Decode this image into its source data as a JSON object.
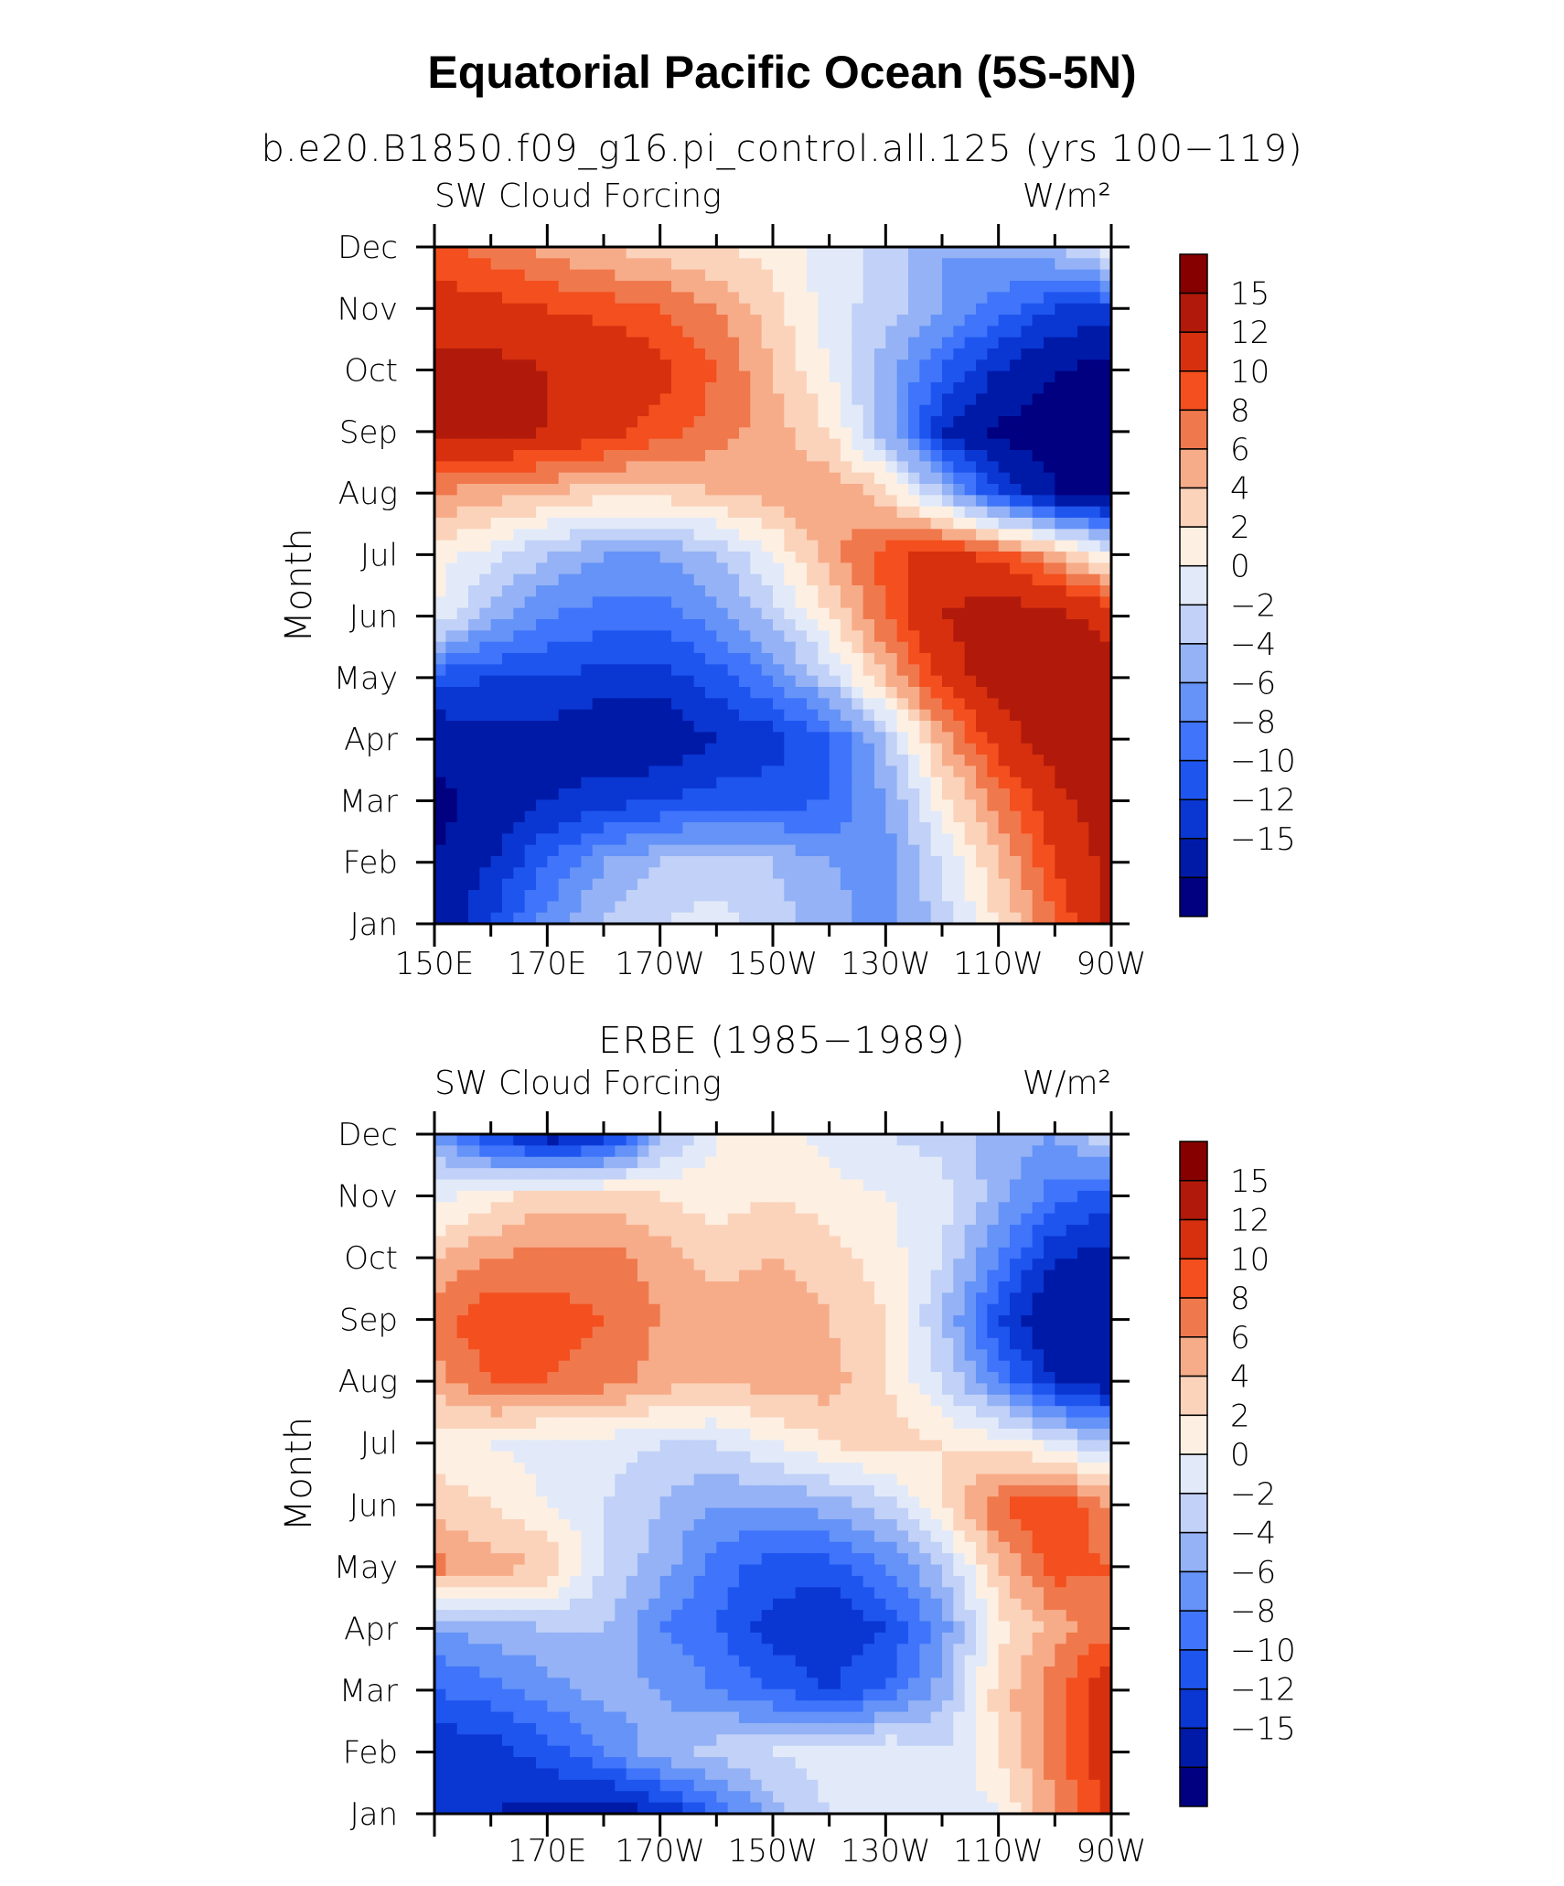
{
  "title": "Equatorial Pacific Ocean (5S-5N)",
  "colors": [
    "#000080",
    "#001aa8",
    "#0a37d2",
    "#1f55ef",
    "#3f74fb",
    "#6593f7",
    "#94b2f5",
    "#c1d1f7",
    "#e2eaf9",
    "#fdf0e2",
    "#fbd3bb",
    "#f7ac89",
    "#f0784d",
    "#f44f1e",
    "#d6300f",
    "#b11a0a",
    "#870000"
  ],
  "levels": [
    -15,
    -12,
    -10,
    -8,
    -6,
    -4,
    -2,
    0,
    2,
    4,
    6,
    8,
    10,
    12,
    15
  ],
  "chart_data": [
    {
      "type": "heatmap",
      "subtitle": "b.e20.B1850.f09_g16.pi_control.all.125 (yrs 100−119)",
      "left_label": "SW Cloud Forcing",
      "right_label": "W/m²",
      "ylabel": "Month",
      "xlabel": "",
      "x_ticks": [
        "150E",
        "170E",
        "170W",
        "150W",
        "130W",
        "110W",
        "90W"
      ],
      "y_ticks": [
        "Jan",
        "Feb",
        "Mar",
        "Apr",
        "May",
        "Jun",
        "Jul",
        "Aug",
        "Sep",
        "Oct",
        "Nov",
        "Dec"
      ],
      "xlim": [
        150,
        270
      ],
      "colorbar_labels": [
        "15",
        "12",
        "10",
        "8",
        "6",
        "4",
        "2",
        "0",
        "−2",
        "−4",
        "−6",
        "−8",
        "−10",
        "−12",
        "−15"
      ],
      "x": [
        150,
        160,
        170,
        180,
        190,
        200,
        210,
        220,
        230,
        240,
        250,
        260,
        270
      ],
      "months": [
        1,
        2,
        3,
        4,
        5,
        6,
        7,
        8,
        9,
        10,
        11,
        12
      ],
      "values": [
        [
          -14,
          -10,
          -5,
          -2,
          0,
          1,
          -1,
          -3,
          -5,
          -1,
          4,
          10,
          16
        ],
        [
          -15,
          -12,
          -8,
          -4,
          -2,
          -1,
          -2,
          -4,
          -5,
          0,
          6,
          12,
          16
        ],
        [
          -16,
          -14,
          -12,
          -11,
          -10,
          -9,
          -9,
          -8,
          -4,
          3,
          9,
          14,
          17
        ],
        [
          -14,
          -13,
          -13,
          -14,
          -14,
          -12,
          -11,
          -8,
          -2,
          7,
          13,
          17,
          17
        ],
        [
          -9,
          -10,
          -10,
          -11,
          -11,
          -9,
          -6,
          -1,
          6,
          13,
          17,
          17,
          16
        ],
        [
          2,
          -3,
          -6,
          -7,
          -7,
          -5,
          -1,
          4,
          10,
          15,
          17,
          16,
          14
        ],
        [
          3,
          1,
          -2,
          -4,
          -4,
          -2,
          2,
          7,
          11,
          13,
          11,
          7,
          2
        ],
        [
          8,
          7,
          6,
          5,
          5,
          6,
          7,
          8,
          5,
          -2,
          -10,
          -15,
          -16
        ],
        [
          16,
          16,
          15,
          13,
          11,
          9,
          7,
          4,
          -3,
          -12,
          -16,
          -16,
          -16
        ],
        [
          16,
          16,
          15,
          15,
          13,
          10,
          6,
          2,
          -3,
          -8,
          -12,
          -15,
          -16
        ],
        [
          13,
          13,
          12,
          11,
          10,
          8,
          5,
          1,
          -1,
          -4,
          -7,
          -10,
          -10
        ],
        [
          11,
          9,
          7,
          6,
          5,
          4,
          3,
          1,
          -1,
          -4,
          -3,
          -2,
          2
        ]
      ]
    },
    {
      "type": "heatmap",
      "subtitle": "ERBE (1985−1989)",
      "left_label": "SW Cloud Forcing",
      "right_label": "W/m²",
      "ylabel": "Month",
      "xlabel": "",
      "x_ticks": [
        "170E",
        "170W",
        "150W",
        "130W",
        "110W",
        "90W"
      ],
      "y_ticks": [
        "Jan",
        "Feb",
        "Mar",
        "Apr",
        "May",
        "Jun",
        "Jul",
        "Aug",
        "Sep",
        "Oct",
        "Nov",
        "Dec"
      ],
      "xlim": [
        150,
        270
      ],
      "colorbar_labels": [
        "15",
        "12",
        "10",
        "8",
        "6",
        "4",
        "2",
        "0",
        "−2",
        "−4",
        "−6",
        "−8",
        "−10",
        "−12",
        "−15"
      ],
      "x": [
        150,
        160,
        170,
        180,
        190,
        200,
        210,
        220,
        230,
        240,
        250,
        260,
        270
      ],
      "months": [
        1,
        2,
        3,
        4,
        5,
        6,
        7,
        8,
        9,
        10,
        11,
        12
      ],
      "values": [
        [
          -10,
          -12,
          -13,
          -14,
          -12,
          -8,
          -3,
          0,
          1,
          0,
          2,
          8,
          13
        ],
        [
          -12,
          -11,
          -9,
          -6,
          -3,
          -1,
          0,
          1,
          2,
          0,
          4,
          9,
          14
        ],
        [
          -8,
          -7,
          -5,
          -3,
          -4,
          -6,
          -8,
          -10,
          -8,
          -3,
          5,
          9,
          15
        ],
        [
          -4,
          -3,
          -2,
          -2,
          -6,
          -8,
          -11,
          -12,
          -10,
          -5,
          3,
          7,
          9
        ],
        [
          9,
          7,
          6,
          0,
          -3,
          -7,
          -9,
          -9,
          -6,
          -2,
          6,
          11,
          10
        ],
        [
          5,
          4,
          2,
          0,
          -2,
          -4,
          -4,
          -3,
          -1,
          4,
          10,
          12,
          8
        ],
        [
          3,
          2,
          1,
          1,
          0,
          0,
          2,
          4,
          5,
          4,
          3,
          1,
          -2
        ],
        [
          7,
          10,
          10,
          9,
          7,
          6,
          7,
          7,
          4,
          0,
          -6,
          -12,
          -14
        ],
        [
          9,
          12,
          11,
          10,
          8,
          7,
          8,
          6,
          4,
          -2,
          -10,
          -15,
          -15
        ],
        [
          6,
          8,
          9,
          9,
          7,
          5,
          6,
          5,
          3,
          0,
          -6,
          -12,
          -13
        ],
        [
          1,
          3,
          5,
          5,
          4,
          3,
          4,
          3,
          2,
          1,
          -3,
          -7,
          -9
        ],
        [
          -4,
          -10,
          -14,
          -12,
          -3,
          2,
          3,
          1,
          0,
          -1,
          -3,
          -4,
          0
        ]
      ]
    }
  ]
}
